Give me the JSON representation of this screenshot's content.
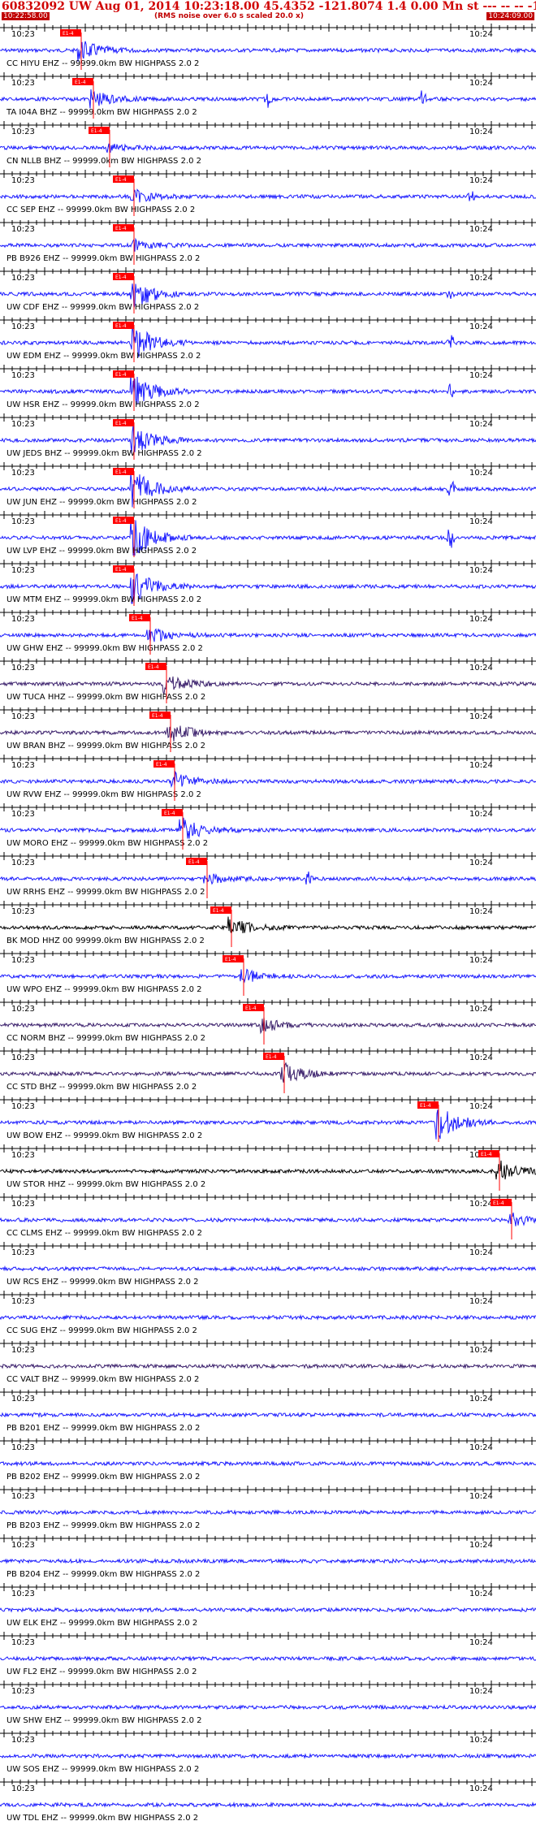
{
  "header": {
    "title": "60832092 UW Aug 01, 2014 10:23:18.00   45.4352 -121.8074  1.4 0.00 Mn st --- -- --   -1",
    "left_time": "10:22:58.00",
    "right_time": "10:24:09.00",
    "note": "(RMS noise over 6.0 s scaled 20.0 x)"
  },
  "tick_labels": {
    "left": "10:23",
    "right": "10:24"
  },
  "colors": {
    "trace": "#1a1aff",
    "trace_black": "#000000",
    "trace_purple": "#3a1f6b",
    "pick": "#ff0000"
  },
  "stations": [
    {
      "label": "CC HIYU EHZ -- 99999.0km BW  HIGHPASS  2.0  2",
      "pick": "E1-4"
    },
    {
      "label": "TA I04A BHZ -- 99999.0km BW  HIGHPASS  2.0  2",
      "pick": "E1-4"
    },
    {
      "label": "CN NLLB BHZ -- 99999.0km BW  HIGHPASS  2.0  2",
      "pick": "E1-4"
    },
    {
      "label": "CC SEP EHZ -- 99999.0km BW  HIGHPASS  2.0  2",
      "pick": "E1-4"
    },
    {
      "label": "PB B926 EHZ -- 99999.0km BW  HIGHPASS  2.0  2",
      "pick": "E1-4"
    },
    {
      "label": "UW CDF EHZ -- 99999.0km BW  HIGHPASS  2.0  2",
      "pick": "E1-4"
    },
    {
      "label": "UW EDM EHZ -- 99999.0km BW  HIGHPASS  2.0  2",
      "pick": "E1-4"
    },
    {
      "label": "UW HSR EHZ -- 99999.0km BW  HIGHPASS  2.0  2",
      "pick": "E1-4"
    },
    {
      "label": "UW JEDS BHZ -- 99999.0km BW  HIGHPASS  2.0  2",
      "pick": "E1-4"
    },
    {
      "label": "UW JUN EHZ -- 99999.0km BW  HIGHPASS  2.0  2",
      "pick": "E1-4"
    },
    {
      "label": "UW LVP EHZ -- 99999.0km BW  HIGHPASS  2.0  2",
      "pick": "E1-4"
    },
    {
      "label": "UW MTM EHZ -- 99999.0km BW  HIGHPASS  2.0  2",
      "pick": "E1-4"
    },
    {
      "label": "UW GHW EHZ -- 99999.0km BW  HIGHPASS  2.0  2",
      "pick": "E1-4"
    },
    {
      "label": "UW TUCA HHZ -- 99999.0km BW  HIGHPASS  2.0  2",
      "pick": "E1-4"
    },
    {
      "label": "UW BRAN BHZ -- 99999.0km BW  HIGHPASS  2.0  2",
      "pick": "E1-4"
    },
    {
      "label": "UW RVW EHZ -- 99999.0km BW  HIGHPASS  2.0  2",
      "pick": "E1-4"
    },
    {
      "label": "UW MORO EHZ -- 99999.0km BW  HIGHPASS  2.0  2",
      "pick": "E1-4"
    },
    {
      "label": "UW RRHS EHZ -- 99999.0km BW  HIGHPASS  2.0  2",
      "pick": "E1-4"
    },
    {
      "label": "BK MOD HHZ 00 99999.0km BW  HIGHPASS  2.0  2",
      "pick": "E1-4"
    },
    {
      "label": "UW WPO EHZ -- 99999.0km BW  HIGHPASS  2.0  2",
      "pick": "E1-4"
    },
    {
      "label": "CC NORM BHZ -- 99999.0km BW  HIGHPASS  2.0  2",
      "pick": "E1-4"
    },
    {
      "label": "CC STD BHZ -- 99999.0km BW  HIGHPASS  2.0  2",
      "pick": "E1-4"
    },
    {
      "label": "UW BOW EHZ -- 99999.0km BW  HIGHPASS  2.0  2",
      "pick": "E1-4"
    },
    {
      "label": "UW STOR HHZ -- 99999.0km BW  HIGHPASS  2.0  2",
      "pick": "E1-4"
    },
    {
      "label": "CC CLMS EHZ -- 99999.0km BW  HIGHPASS  2.0  2",
      "pick": "E1-4"
    },
    {
      "label": "UW RCS EHZ -- 99999.0km BW  HIGHPASS  2.0  2",
      "pick": ""
    },
    {
      "label": "CC SUG EHZ -- 99999.0km BW  HIGHPASS  2.0  2",
      "pick": ""
    },
    {
      "label": "CC VALT BHZ -- 99999.0km BW  HIGHPASS  2.0  2",
      "pick": ""
    },
    {
      "label": "PB B201 EHZ -- 99999.0km BW  HIGHPASS  2.0  2",
      "pick": ""
    },
    {
      "label": "PB B202 EHZ -- 99999.0km BW  HIGHPASS  2.0  2",
      "pick": ""
    },
    {
      "label": "PB B203 EHZ -- 99999.0km BW  HIGHPASS  2.0  2",
      "pick": ""
    },
    {
      "label": "PB B204 EHZ -- 99999.0km BW  HIGHPASS  2.0  2",
      "pick": ""
    },
    {
      "label": "UW ELK EHZ -- 99999.0km BW  HIGHPASS  2.0  2",
      "pick": ""
    },
    {
      "label": "UW FL2 EHZ -- 99999.0km BW  HIGHPASS  2.0  2",
      "pick": ""
    },
    {
      "label": "UW SHW EHZ -- 99999.0km BW  HIGHPASS  2.0  2",
      "pick": ""
    },
    {
      "label": "UW SOS EHZ -- 99999.0km BW  HIGHPASS  2.0  2",
      "pick": ""
    },
    {
      "label": "UW TDL EHZ -- 99999.0km BW  HIGHPASS  2.0  2",
      "pick": ""
    }
  ]
}
